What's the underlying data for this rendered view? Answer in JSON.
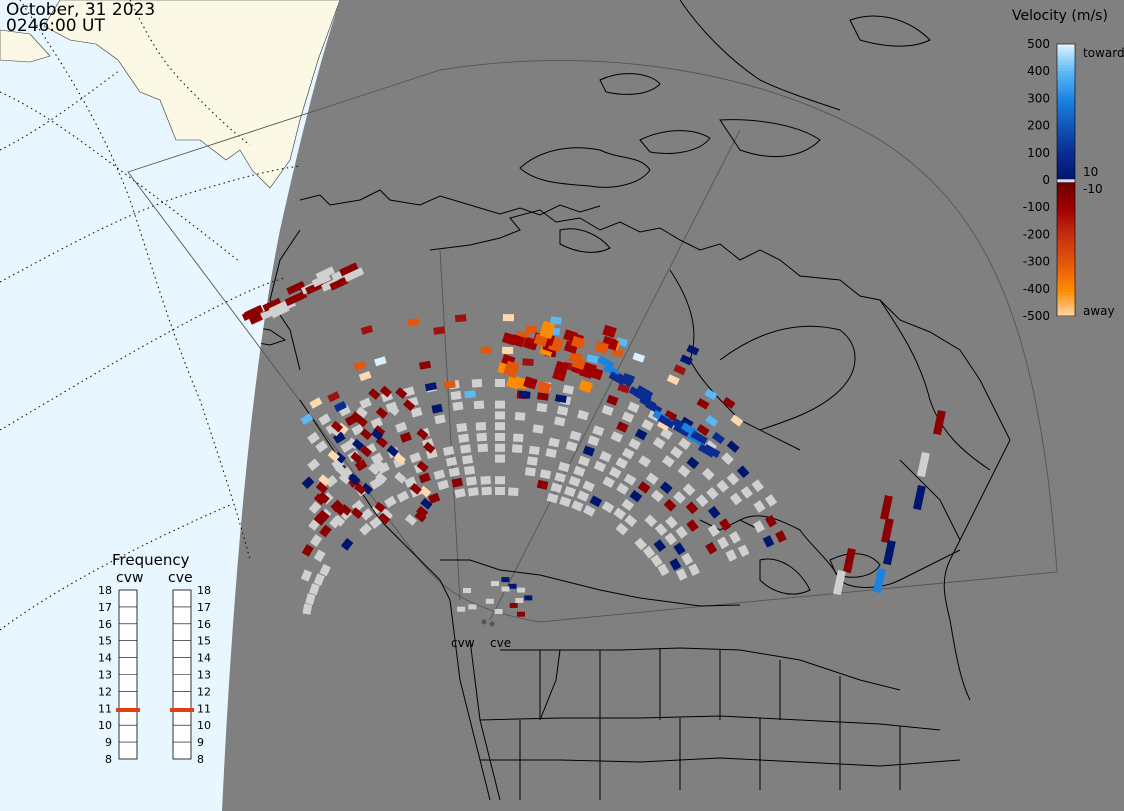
{
  "header": {
    "date": "October, 31 2023",
    "time": "0246:00 UT"
  },
  "colorbar": {
    "title": "Velocity (m/s)",
    "ticks": [
      {
        "label": "500",
        "value": 500
      },
      {
        "label": "400",
        "value": 400
      },
      {
        "label": "300",
        "value": 300
      },
      {
        "label": "200",
        "value": 200
      },
      {
        "label": "100",
        "value": 100
      },
      {
        "label": "0",
        "value": 0
      },
      {
        "label": "-100",
        "value": -100
      },
      {
        "label": "-200",
        "value": -200
      },
      {
        "label": "-300",
        "value": -300
      },
      {
        "label": "-400",
        "value": -400
      },
      {
        "label": "-500",
        "value": -500
      }
    ],
    "positive_label": "toward",
    "negative_label": "away",
    "threshold_pos": "10",
    "threshold_neg": "-10",
    "stops": [
      {
        "value": 500,
        "color": "#d8f0ff"
      },
      {
        "value": 400,
        "color": "#5ab8f5"
      },
      {
        "value": 300,
        "color": "#1c82e0"
      },
      {
        "value": 200,
        "color": "#1254b8"
      },
      {
        "value": 100,
        "color": "#0a2c90"
      },
      {
        "value": 10,
        "color": "#00166e"
      },
      {
        "value": -10,
        "color": "#6e0000"
      },
      {
        "value": -100,
        "color": "#a00000"
      },
      {
        "value": -200,
        "color": "#c63010"
      },
      {
        "value": -300,
        "color": "#e4560a"
      },
      {
        "value": -400,
        "color": "#ff8c00"
      },
      {
        "value": -500,
        "color": "#ffd8b0"
      }
    ]
  },
  "frequency": {
    "title": "Frequency",
    "radars": [
      {
        "name": "cvw",
        "value": 10.9
      },
      {
        "name": "cve",
        "value": 10.9
      }
    ],
    "ticks": [
      "18",
      "17",
      "16",
      "15",
      "14",
      "13",
      "12",
      "11",
      "10",
      "9",
      "8"
    ],
    "min": 8,
    "max": 18,
    "marker_color": "#e04010"
  },
  "radar_sites": [
    {
      "name": "cvw"
    },
    {
      "name": "cve"
    }
  ],
  "colors": {
    "night": "#808080",
    "day_ocean": "#e8f6ff",
    "day_land": "#fbf8e6",
    "ground_scatter": "#d0d0d0",
    "coast": "#000000"
  }
}
